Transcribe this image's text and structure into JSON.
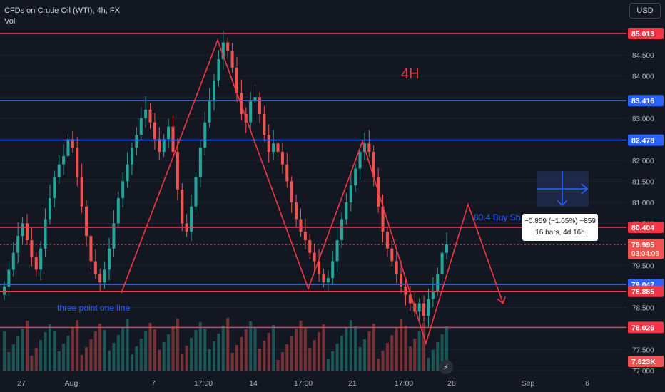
{
  "header": {
    "symbol_title": "CFDs on Crude Oil (WTI), 4h, FX",
    "indicator_label": "Vol",
    "currency_button": "USD"
  },
  "annotations": {
    "timeframe_label": "4H",
    "buy_signal_label": "80.4 Buy Sh",
    "trendline_label": "three point one line",
    "measure_line1": "−0.859 (−1.05%) −859",
    "measure_line2": "16 bars, 4d 16h",
    "countdown": "03:04:06",
    "volume_value": "7.623K",
    "timer_icon": "⚡"
  },
  "colors": {
    "background": "#131722",
    "bull": "#26a69a",
    "bear": "#ef5350",
    "red_line": "#f23645",
    "blue_line": "#2962ff",
    "drawing": "#f23645"
  },
  "chart_data": {
    "type": "candlestick",
    "title": "CFDs on Crude Oil (WTI), 4h, FX",
    "ylim": [
      77.0,
      85.3
    ],
    "y_ticks": [
      "85.000",
      "84.500",
      "84.000",
      "83.500",
      "83.000",
      "82.500",
      "82.000",
      "81.500",
      "81.000",
      "80.500",
      "80.000",
      "79.500",
      "79.000",
      "78.500",
      "78.000",
      "77.500",
      "77.000"
    ],
    "x_ticks": [
      "27",
      "Aug",
      "7",
      "17:00",
      "14",
      "17:00",
      "21",
      "17:00",
      "28",
      "Sep",
      "6"
    ],
    "last_price": "79.995",
    "horizontal_levels": [
      {
        "price": "85.013",
        "color": "red"
      },
      {
        "price": "83.416",
        "color": "blue"
      },
      {
        "price": "82.478",
        "color": "blue"
      },
      {
        "price": "80.404",
        "color": "red"
      },
      {
        "price": "79.047",
        "color": "blue"
      },
      {
        "price": "78.885",
        "color": "red"
      },
      {
        "price": "78.026",
        "color": "red"
      }
    ],
    "drawn_path_prices": [
      78.85,
      84.85,
      78.95,
      82.45,
      77.65,
      80.95,
      78.6
    ],
    "closes": [
      79.0,
      79.4,
      79.8,
      80.2,
      80.5,
      80.1,
      79.7,
      79.4,
      79.9,
      80.6,
      81.1,
      81.6,
      81.9,
      82.1,
      82.5,
      82.3,
      81.6,
      80.9,
      80.2,
      79.6,
      79.3,
      79.1,
      79.4,
      79.9,
      80.5,
      81.1,
      81.5,
      81.9,
      82.3,
      82.6,
      83.0,
      83.2,
      82.9,
      82.5,
      82.2,
      82.5,
      82.8,
      82.2,
      81.3,
      80.5,
      80.3,
      80.9,
      81.6,
      82.3,
      82.9,
      83.4,
      83.9,
      84.4,
      84.8,
      84.6,
      84.2,
      83.6,
      83.1,
      82.9,
      83.4,
      83.5,
      83.1,
      82.6,
      82.2,
      82.4,
      82.2,
      81.9,
      81.5,
      81.0,
      80.6,
      80.3,
      80.1,
      79.8,
      79.6,
      79.3,
      79.1,
      79.2,
      79.6,
      80.1,
      80.6,
      81.0,
      81.4,
      81.8,
      82.2,
      82.4,
      82.2,
      81.6,
      80.9,
      80.3,
      79.9,
      79.6,
      79.3,
      79.0,
      78.8,
      78.6,
      78.4,
      78.6,
      78.3,
      78.7,
      78.9,
      79.3,
      79.8,
      80.0
    ]
  }
}
